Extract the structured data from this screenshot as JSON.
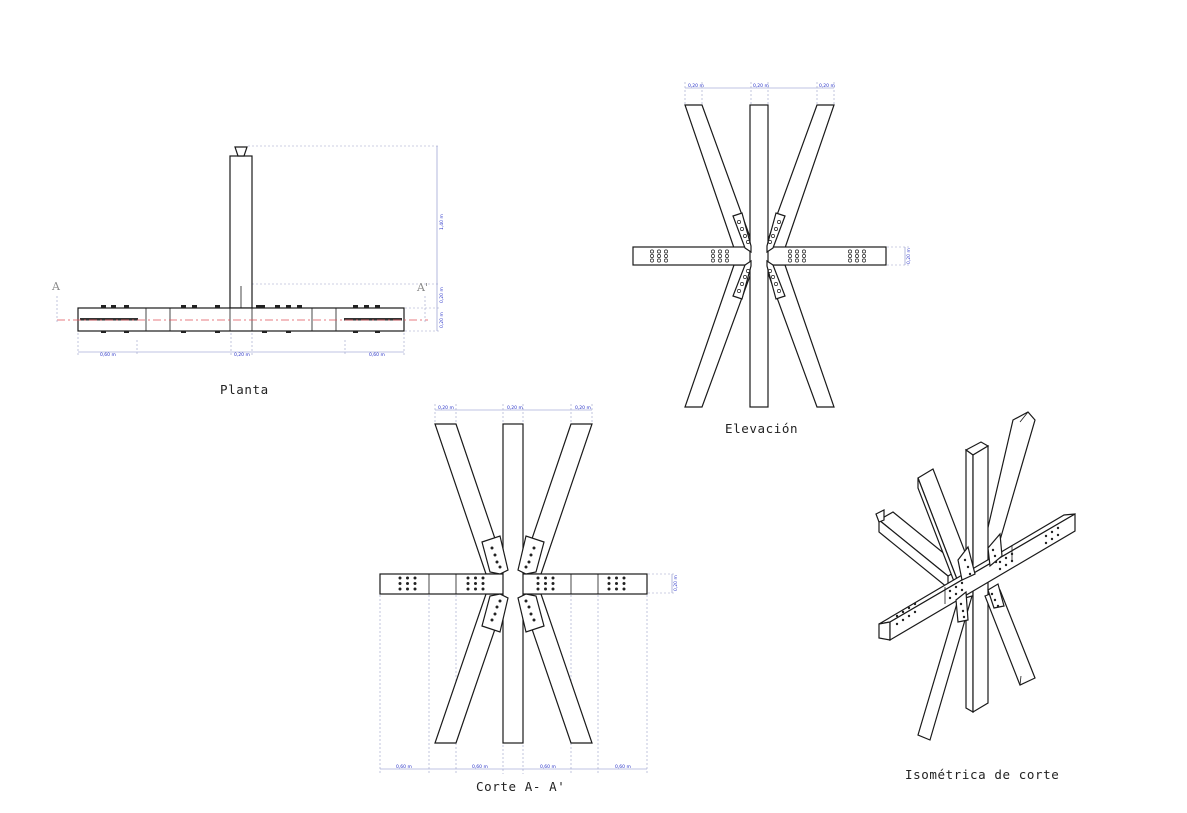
{
  "drawing": {
    "plan": {
      "caption": "Planta",
      "cut_start": "A",
      "cut_end": "A'",
      "dims": [
        "0,60 m",
        "0,20 m",
        "0,60 m",
        "1,40 m",
        "0,20 m",
        "0,20 m"
      ]
    },
    "elevation": {
      "caption": "Elevación",
      "dims": [
        "0,20 m",
        "0,20 m",
        "0,20 m",
        "0,20 m"
      ]
    },
    "section": {
      "caption": "Corte A- A'",
      "top_dims": [
        "0,20 m",
        "0,20 m",
        "0,20 m"
      ],
      "side_dim": "0,20 m",
      "bottom_dims": [
        "0,60 m",
        "0,60 m",
        "0,60 m",
        "0,60 m"
      ]
    },
    "isometric": {
      "caption": "Isométrica de corte"
    }
  }
}
